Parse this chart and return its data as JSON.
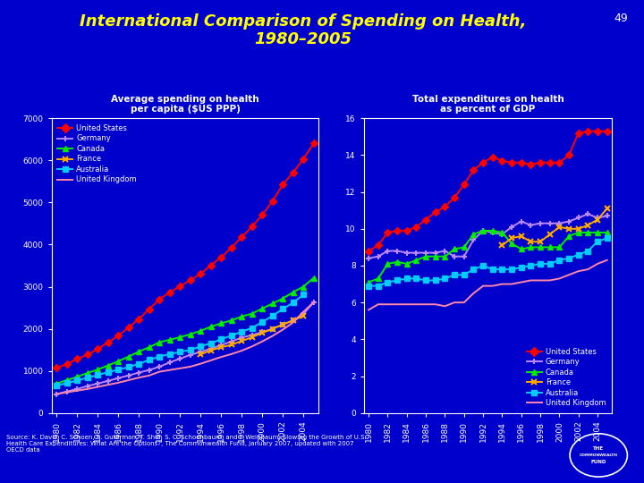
{
  "title_line1": "International Comparison of Spending on Health,",
  "title_line2": "1980–2005",
  "title_number": "49",
  "background_color": "#0000CC",
  "plot_bg_color": "#0000CC",
  "title_color": "#FFFF00",
  "text_color": "#FFFFFF",
  "subtitle_left": "Average spending on health\nper capita ($US PPP)",
  "subtitle_right": "Total expenditures on health\nas percent of GDP",
  "source_text": "Source: K. Davis, C. Schoen, S. Guterman, T. Shih, S. C. Schoenbaum, and I. Weinbaum, Slowing the Growth of U.S.\nHealth Care Expenditures: What Are the Options?, The Commonwealth Fund, January 2007, updated with 2007\nOECD data",
  "years": [
    1980,
    1981,
    1982,
    1983,
    1984,
    1985,
    1986,
    1987,
    1988,
    1989,
    1990,
    1991,
    1992,
    1993,
    1994,
    1995,
    1996,
    1997,
    1998,
    1999,
    2000,
    2001,
    2002,
    2003,
    2004,
    2005
  ],
  "left_chart": {
    "us": [
      1067,
      1165,
      1280,
      1388,
      1518,
      1681,
      1836,
      2034,
      2235,
      2468,
      2700,
      2868,
      3008,
      3155,
      3306,
      3509,
      3698,
      3925,
      4178,
      4428,
      4703,
      5034,
      5427,
      5711,
      6037,
      6401
    ],
    "germany": [
      450,
      510,
      570,
      640,
      700,
      760,
      830,
      890,
      960,
      1020,
      1100,
      1200,
      1290,
      1380,
      1450,
      1530,
      1610,
      1700,
      1790,
      1850,
      1920,
      2000,
      2100,
      2200,
      2350,
      2630
    ],
    "canada": [
      700,
      780,
      860,
      950,
      1030,
      1130,
      1230,
      1340,
      1460,
      1560,
      1680,
      1740,
      1800,
      1870,
      1950,
      2050,
      2130,
      2200,
      2290,
      2360,
      2480,
      2600,
      2720,
      2870,
      3000,
      3210
    ],
    "france": [
      null,
      null,
      null,
      null,
      null,
      null,
      null,
      null,
      null,
      null,
      null,
      null,
      null,
      null,
      1390,
      1490,
      1560,
      1620,
      1710,
      1800,
      1900,
      2000,
      2100,
      2200,
      2300,
      null
    ],
    "australia": [
      650,
      710,
      770,
      840,
      900,
      970,
      1030,
      1090,
      1170,
      1260,
      1340,
      1400,
      1450,
      1500,
      1580,
      1660,
      1750,
      1840,
      1930,
      2020,
      2160,
      2310,
      2470,
      2620,
      2810,
      null
    ],
    "uk": [
      450,
      490,
      530,
      570,
      620,
      670,
      720,
      780,
      840,
      890,
      980,
      1020,
      1060,
      1100,
      1170,
      1250,
      1330,
      1400,
      1480,
      1580,
      1700,
      1830,
      1980,
      2150,
      2400,
      2630
    ]
  },
  "right_chart": {
    "us": [
      8.8,
      9.1,
      9.8,
      9.9,
      9.9,
      10.1,
      10.5,
      10.9,
      11.2,
      11.7,
      12.4,
      13.2,
      13.6,
      13.9,
      13.7,
      13.6,
      13.6,
      13.5,
      13.6,
      13.6,
      13.6,
      14.0,
      15.2,
      15.3,
      15.3,
      15.3
    ],
    "germany": [
      8.4,
      8.5,
      8.8,
      8.8,
      8.7,
      8.7,
      8.7,
      8.7,
      8.8,
      8.5,
      8.5,
      9.4,
      9.9,
      9.8,
      9.7,
      10.1,
      10.4,
      10.2,
      10.3,
      10.3,
      10.3,
      10.4,
      10.6,
      10.8,
      10.6,
      10.7
    ],
    "canada": [
      7.1,
      7.3,
      8.1,
      8.2,
      8.1,
      8.3,
      8.5,
      8.5,
      8.5,
      8.9,
      9.0,
      9.7,
      9.9,
      9.9,
      9.8,
      9.2,
      8.9,
      9.0,
      9.0,
      9.0,
      9.0,
      9.6,
      9.8,
      9.8,
      9.8,
      9.8
    ],
    "france": [
      null,
      null,
      null,
      null,
      null,
      null,
      null,
      null,
      null,
      null,
      null,
      null,
      null,
      null,
      9.1,
      9.5,
      9.6,
      9.3,
      9.3,
      9.7,
      10.1,
      10.0,
      10.0,
      10.2,
      10.5,
      11.1
    ],
    "australia": [
      6.9,
      6.9,
      7.1,
      7.2,
      7.3,
      7.3,
      7.2,
      7.2,
      7.3,
      7.5,
      7.5,
      7.8,
      8.0,
      7.8,
      7.8,
      7.8,
      7.9,
      8.0,
      8.1,
      8.1,
      8.3,
      8.4,
      8.6,
      8.8,
      9.3,
      9.5
    ],
    "uk": [
      5.6,
      5.9,
      5.9,
      5.9,
      5.9,
      5.9,
      5.9,
      5.9,
      5.8,
      6.0,
      6.0,
      6.5,
      6.9,
      6.9,
      7.0,
      7.0,
      7.1,
      7.2,
      7.2,
      7.2,
      7.3,
      7.5,
      7.7,
      7.8,
      8.1,
      8.3
    ]
  },
  "colors": {
    "us": "#FF0000",
    "germany": "#BB88FF",
    "canada": "#00EE00",
    "france": "#FFAA00",
    "australia": "#00CCFF",
    "uk": "#FF88AA"
  },
  "markers": {
    "us": "D",
    "germany": "+",
    "canada": "^",
    "france": "x",
    "australia": "s",
    "uk": "None"
  },
  "legend_labels": {
    "us": "United States",
    "germany": "Germany",
    "canada": "Canada",
    "france": "France",
    "australia": "Australia",
    "uk": "United Kingdom"
  }
}
